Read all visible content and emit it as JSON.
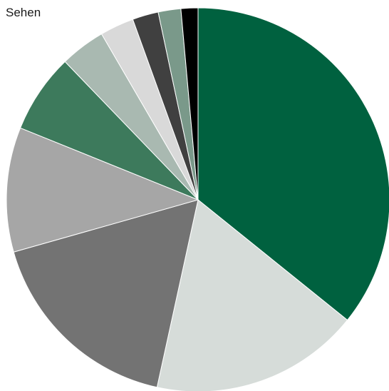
{
  "chart_data": {
    "type": "pie",
    "title": "Sehen",
    "start_angle_deg": 0,
    "direction": "clockwise",
    "slices": [
      {
        "value": 37.5,
        "color": "#00613f"
      },
      {
        "value": 18.5,
        "color": "#d6dcd9"
      },
      {
        "value": 18.0,
        "color": "#737373"
      },
      {
        "value": 11.0,
        "color": "#a6a6a6"
      },
      {
        "value": 7.0,
        "color": "#3d7a5c"
      },
      {
        "value": 4.0,
        "color": "#a9b9b1"
      },
      {
        "value": 3.0,
        "color": "#d9d9d9"
      },
      {
        "value": 2.3,
        "color": "#404040"
      },
      {
        "value": 2.0,
        "color": "#7a998a"
      },
      {
        "value": 1.5,
        "color": "#000000"
      }
    ]
  }
}
